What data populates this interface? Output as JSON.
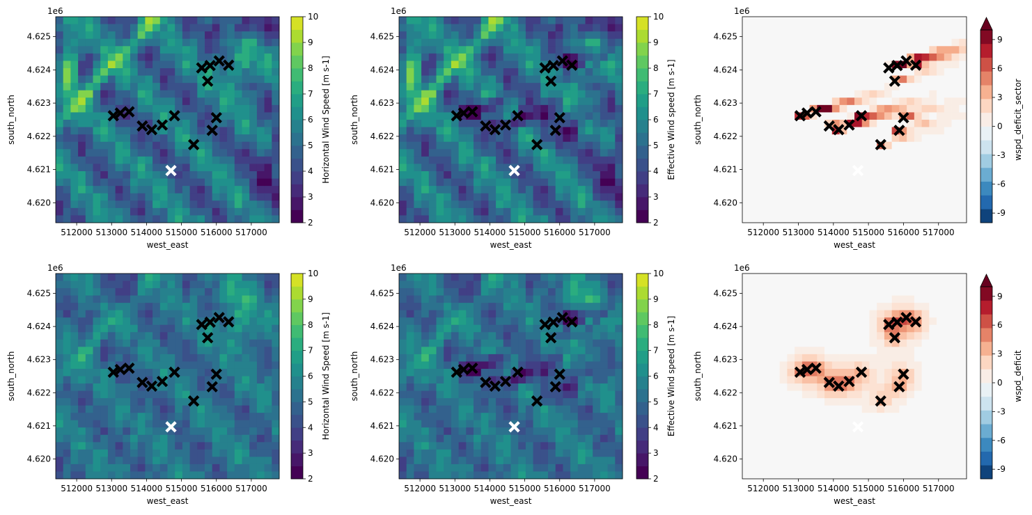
{
  "figure": {
    "axis_xlabel": "west_east",
    "axis_ylabel": "south_north",
    "y_offset_label": "1e6",
    "x_ticks": [
      "512000",
      "513000",
      "514000",
      "515000",
      "516000",
      "517000"
    ],
    "x_tick_values": [
      512000,
      513000,
      514000,
      515000,
      516000,
      517000
    ],
    "y_ticks": [
      "4.620",
      "4.621",
      "4.622",
      "4.623",
      "4.624",
      "4.625"
    ],
    "y_tick_values": [
      4.62,
      4.621,
      4.622,
      4.623,
      4.624,
      4.625
    ],
    "xlim": [
      511400,
      517800
    ],
    "ylim": [
      4.6194,
      4.6256
    ],
    "viridis_ticks": [
      "2",
      "3",
      "4",
      "5",
      "6",
      "7",
      "8",
      "9",
      "10"
    ],
    "rdbu_ticks": [
      "9",
      "6",
      "3",
      "0",
      "-3",
      "-6",
      "-9"
    ],
    "turbine_color": "#000000",
    "met_mast_color": "#ffffff"
  },
  "chart_data": [
    {
      "type": "heatmap",
      "panel": "top-left",
      "colorbar_label": "Horizontal Wind Speed [m s-1]",
      "cmap": "viridis",
      "clim": [
        2,
        10
      ]
    },
    {
      "type": "heatmap",
      "panel": "top-middle",
      "colorbar_label": "Effective Wind speed [m s-1]",
      "cmap": "viridis",
      "clim": [
        2,
        10
      ]
    },
    {
      "type": "heatmap",
      "panel": "top-right",
      "colorbar_label": "wspd_deficit_sector",
      "cmap": "RdBu_r",
      "clim": [
        -10,
        10
      ]
    },
    {
      "type": "heatmap",
      "panel": "bottom-left",
      "colorbar_label": "Horizontal Wind Speed [m s-1]",
      "cmap": "viridis",
      "clim": [
        2,
        10
      ]
    },
    {
      "type": "heatmap",
      "panel": "bottom-middle",
      "colorbar_label": "Effective Wind speed [m s-1]",
      "cmap": "viridis",
      "clim": [
        2,
        10
      ]
    },
    {
      "type": "heatmap",
      "panel": "bottom-right",
      "colorbar_label": "wspd_deficit",
      "cmap": "RdBu_r",
      "clim": [
        -10,
        10
      ]
    }
  ],
  "turbines": [
    [
      513050,
      4.62262
    ],
    [
      513250,
      4.6227
    ],
    [
      513500,
      4.62274
    ],
    [
      513880,
      4.62231
    ],
    [
      514150,
      4.6222
    ],
    [
      514450,
      4.62234
    ],
    [
      514800,
      4.62262
    ],
    [
      515350,
      4.62175
    ],
    [
      515580,
      4.62406
    ],
    [
      515750,
      4.62366
    ],
    [
      515820,
      4.62413
    ],
    [
      515880,
      4.62218
    ],
    [
      516000,
      4.62256
    ],
    [
      516080,
      4.62427
    ],
    [
      516350,
      4.62414
    ]
  ],
  "met_mast": [
    514700,
    4.62097
  ]
}
